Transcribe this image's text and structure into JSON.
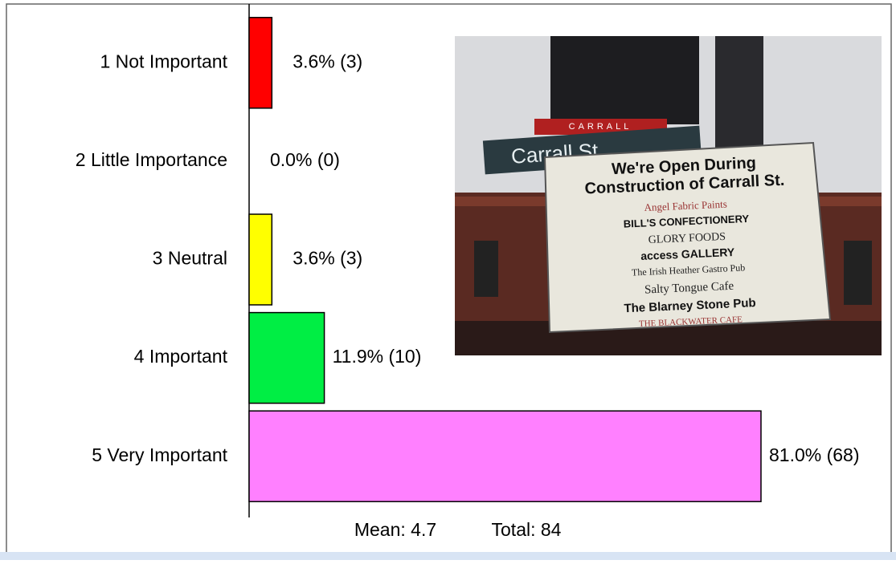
{
  "chart_data": {
    "type": "hbar",
    "categories": [
      "1 Not Important",
      "2 Little Importance",
      "3 Neutral",
      "4 Important",
      "5 Very Important"
    ],
    "values": [
      3.6,
      0.0,
      3.6,
      11.9,
      81.0
    ],
    "value_labels": [
      "3.6% (3)",
      "0.0% (0)",
      "3.6% (3)",
      "11.9% (10)",
      "81.0% (68)"
    ],
    "colors": [
      "#ff0000",
      "#ff0000",
      "#ffff00",
      "#00ee44",
      "#ff80ff"
    ],
    "annotations": [
      "Mean: 4.7",
      "Total: 84"
    ]
  },
  "photo": {
    "street_sign": "Carrall St",
    "street_banner": "CARRALL",
    "sign_lines": [
      "We're Open During",
      "Construction of Carrall St.",
      "Angel Fabric Paints",
      "BILL'S CONFECTIONERY",
      "GLORY FOODS",
      "access GALLERY",
      "The Irish Heather Gastro Pub",
      "Salty Tongue Cafe",
      "The Blarney Stone Pub",
      "THE BLACKWATER CAFE"
    ]
  }
}
